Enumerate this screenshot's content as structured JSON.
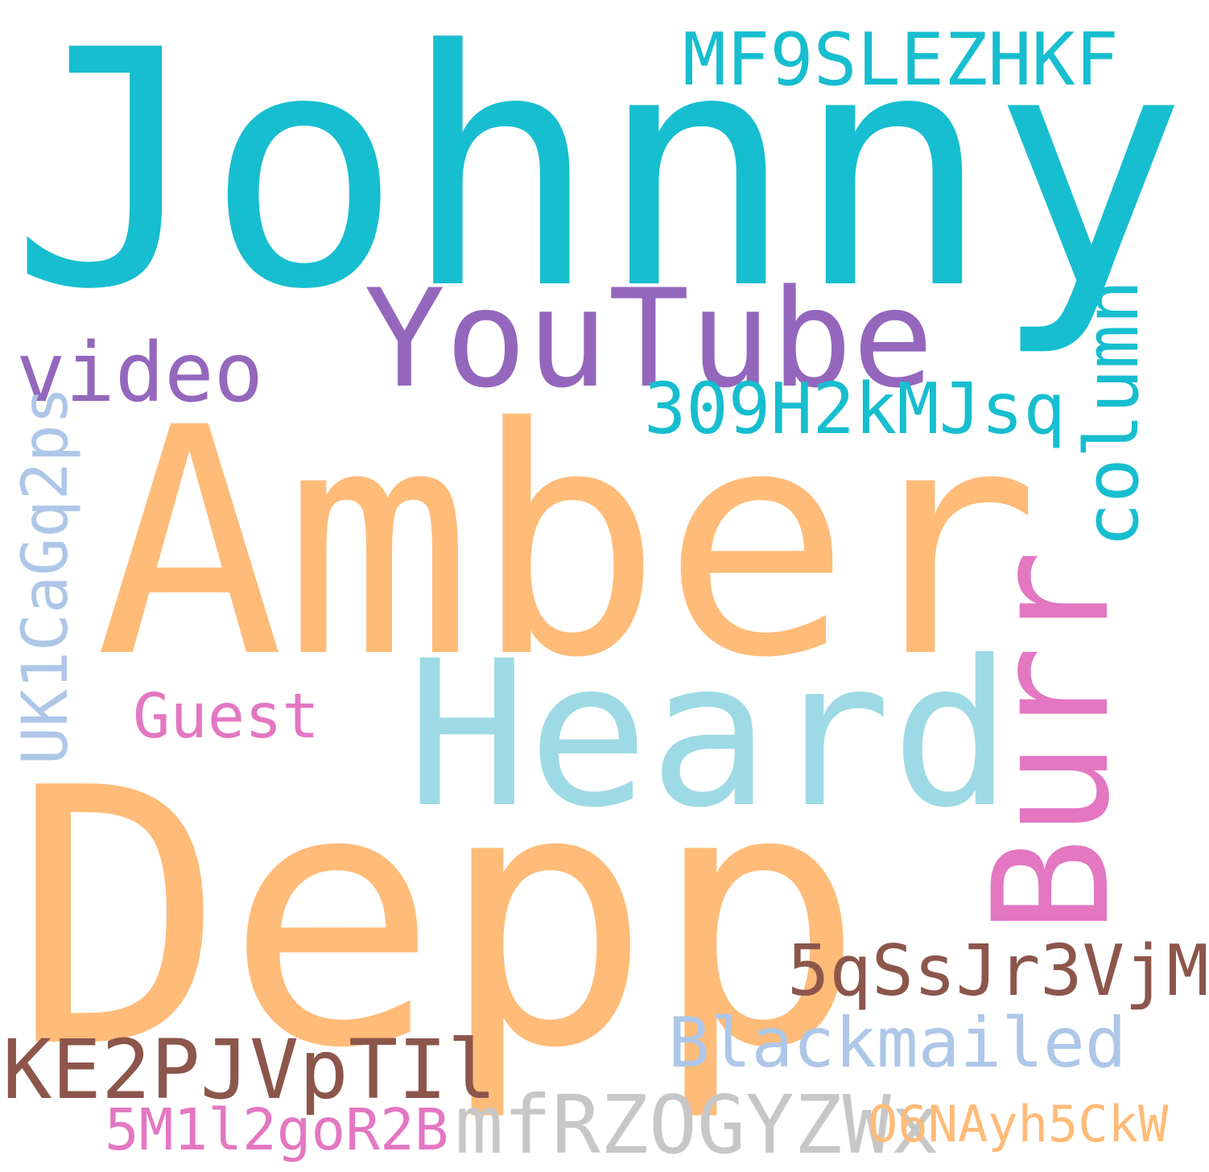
{
  "colors": {
    "background": "#ffffff",
    "cyan": "#17becf",
    "light_cyan": "#9edae5",
    "purple": "#9467bd",
    "orange": "#ffbb78",
    "pink": "#e377c2",
    "brown": "#8c564b",
    "light_blue": "#aec7e8",
    "gray": "#c7c7c7"
  },
  "words": {
    "johnny": "Johnny",
    "amber": "Amber",
    "depp": "Depp",
    "heard": "Heard",
    "burr": "Burr",
    "youtube": "YouTube",
    "video": "video",
    "mf9": "MF9SLEZHKF",
    "h309": "309H2kMJsq",
    "column": "column",
    "uk1": "UK1CaGq2ps",
    "guest": "Guest",
    "s5q": "5qSsJr3VjM",
    "blackmailed": "Blackmailed",
    "ke2": "KE2PJVpTIl",
    "mfr": "mfRZOGYZWx",
    "m51": "5M1l2goR2B",
    "o6n": "O6NAyh5CkW"
  }
}
